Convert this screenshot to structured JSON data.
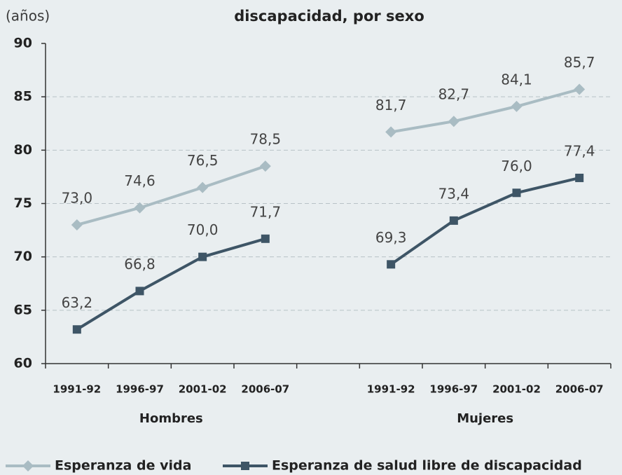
{
  "chart_data": {
    "type": "line",
    "title": "discapacidad, por sexo",
    "y_unit_label": "(años)",
    "categories": [
      "1991-92",
      "1996-97",
      "2001-02",
      "2006-07",
      null,
      "1991-92",
      "1996-97",
      "2001-02",
      "2006-07"
    ],
    "x_groups": [
      "Hombres",
      "Mujeres"
    ],
    "series": [
      {
        "name": "Esperanza de vida",
        "color": "#a9bcc3",
        "marker": "diamond",
        "values": [
          73.0,
          74.6,
          76.5,
          78.5,
          null,
          81.7,
          82.7,
          84.1,
          85.7
        ],
        "value_labels": [
          "73,0",
          "74,6",
          "76,5",
          "78,5",
          null,
          "81,7",
          "82,7",
          "84,1",
          "85,7"
        ]
      },
      {
        "name": "Esperanza de salud libre de discapacidad",
        "color": "#3e5566",
        "marker": "square",
        "values": [
          63.2,
          66.8,
          70.0,
          71.7,
          null,
          69.3,
          73.4,
          76.0,
          77.4
        ],
        "value_labels": [
          "63,2",
          "66,8",
          "70,0",
          "71,7",
          null,
          "69,3",
          "73,4",
          "76,0",
          "77,4"
        ]
      }
    ],
    "ylim": [
      60,
      90
    ],
    "yticks": [
      60,
      65,
      70,
      75,
      80,
      85,
      90
    ],
    "grid": true,
    "legend": "bottom"
  }
}
